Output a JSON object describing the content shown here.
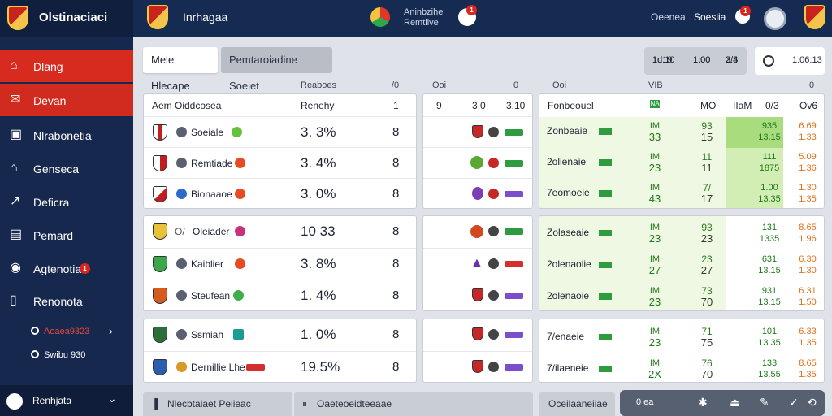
{
  "topbar": {
    "app_name": "Olstinaciaci",
    "page_title": "Inrhagaa",
    "center_line1": "Aninbzihe",
    "center_line2": "Remtiive",
    "center_badge": "1",
    "right_link1": "Oeenea",
    "right_link2": "Soesiia",
    "right_badge": "1"
  },
  "sidebar": {
    "items": [
      {
        "label": "Dlang",
        "icon": "home-icon"
      },
      {
        "label": "Devan",
        "icon": "mail-icon"
      },
      {
        "label": "Nlrabonetia",
        "icon": "film-icon"
      },
      {
        "label": "Genseca",
        "icon": "house-icon"
      },
      {
        "label": "Deficra",
        "icon": "chart-icon"
      },
      {
        "label": "Pemard",
        "icon": "document-icon"
      },
      {
        "label": "Agtenotia",
        "icon": "globe-icon",
        "badge": "1"
      },
      {
        "label": "Renonota",
        "icon": "book-icon"
      }
    ],
    "sub1": "Aoaea9323",
    "sub2": "Swibu 930",
    "footer": "Renhjata"
  },
  "tabs": {
    "tab1": "Mele Hlecape",
    "tab2": "Pemtaroiadine Soeiet"
  },
  "filters": {
    "a1": "1d19",
    "a2": "1d:10",
    "b1": "1:00",
    "b2": "1:00",
    "c1": "3/4",
    "c2": "2:3"
  },
  "clock": {
    "value": "1:06:13"
  },
  "left_panel": {
    "header_left": "Reaboes",
    "header_right": "/0",
    "col1": "Aem Oiddcosea",
    "col2": "Renehy",
    "col3": "1",
    "groups": [
      [
        {
          "team": "Soeiale",
          "pct": "3. 3%"
        },
        {
          "team": "Remtiade",
          "pct": "3. 4%"
        },
        {
          "team": "Bionaaoe",
          "pct": "3. 0%"
        }
      ],
      [
        {
          "team": "Oleiader",
          "pct": "10 33"
        },
        {
          "team": "Kaiblier",
          "pct": "3. 8%"
        },
        {
          "team": "Steufean",
          "pct": "1. 4%"
        }
      ],
      [
        {
          "team": "Ssmiah",
          "pct": "1. 0%"
        },
        {
          "team": "Dernillie Lhe",
          "pct": "19.5%"
        }
      ]
    ]
  },
  "mid_panel": {
    "header_left": "Ooi",
    "header_right": "0",
    "col1": "9",
    "col2": "3 0",
    "col3": "3.10"
  },
  "right_panel": {
    "header_left": "Ooi",
    "header_h1": "VIB",
    "header_right": "0",
    "col1": "Fonbeouel",
    "col2": "NA",
    "col3": "MO",
    "col4": "IIaM",
    "col5": "0/3",
    "col6": "Ov6",
    "rows": [
      {
        "name": "Zonbeaie",
        "a1": "IM",
        "a2": "33",
        "b1": "93",
        "b2": "15",
        "c1": "935",
        "c2": "13.15",
        "d1": "6.69",
        "d2": "1.33"
      },
      {
        "name": "2olienaie",
        "a1": "IM",
        "a2": "23",
        "b1": "11",
        "b2": "11",
        "c1": "111",
        "c2": "1875",
        "d1": "5.09",
        "d2": "1.36"
      },
      {
        "name": "7eomoeie",
        "a1": "IM",
        "a2": "43",
        "b1": "7/",
        "b2": "17",
        "c1": "1.00",
        "c2": "13.35",
        "d1": "1.30",
        "d2": "1.35"
      },
      {
        "name": "Zolaseaie",
        "a1": "IM",
        "a2": "23",
        "b1": "93",
        "b2": "23",
        "c1": "131",
        "c2": "1335",
        "d1": "8.65",
        "d2": "1.96"
      },
      {
        "name": "2olenaolie",
        "a1": "IM",
        "a2": "27",
        "b1": "23",
        "b2": "27",
        "c1": "631",
        "c2": "13.15",
        "d1": "6.30",
        "d2": "1.30"
      },
      {
        "name": "2olenaoie",
        "a1": "IM",
        "a2": "23",
        "b1": "73",
        "b2": "70",
        "c1": "931",
        "c2": "13.15",
        "d1": "6.31",
        "d2": "1.50"
      },
      {
        "name": "7/enaeie",
        "a1": "IM",
        "a2": "23",
        "b1": "71",
        "b2": "75",
        "c1": "101",
        "c2": "13.35",
        "d1": "6.33",
        "d2": "1.35"
      },
      {
        "name": "7/ilaeneie",
        "a1": "IM",
        "a2": "2X",
        "b1": "76",
        "b2": "70",
        "c1": "133",
        "c2": "13.55",
        "d1": "8.65",
        "d2": "1.35"
      }
    ]
  },
  "bottom": {
    "b1": "Nlecbtaiaet Peiieac",
    "b2": "Oaeteoeidteeaae",
    "b3": "Oceilaaneiiae",
    "ctrl1": "0 ea"
  }
}
